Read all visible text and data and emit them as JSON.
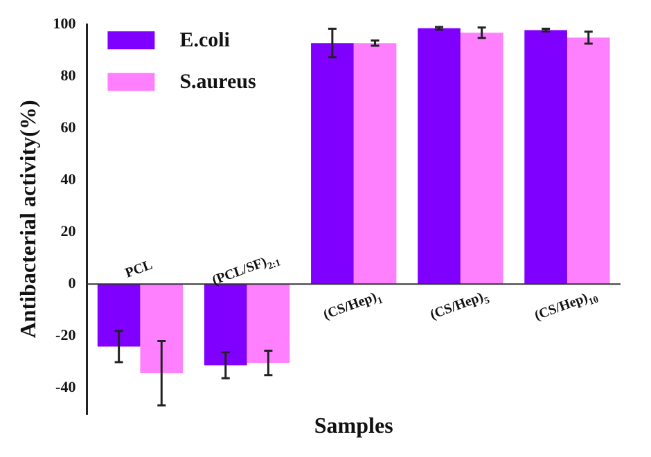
{
  "chart_data": {
    "type": "bar",
    "xlabel": "Samples",
    "ylabel": "Antibacterial activity(%)",
    "categories": [
      "PCL",
      "(PCL/SF)$_{2:1}$",
      "(CS/Hep)$_{1}$",
      "(CS/Hep)$_{5}$",
      "(CS/Hep)$_{10}$"
    ],
    "series": [
      {
        "name": "E.coli",
        "color": "#7f00ff",
        "values": [
          -24.1,
          -31.3,
          92.8,
          98.5,
          97.8
        ],
        "errors": [
          6,
          5,
          5.5,
          0.5,
          0.5
        ]
      },
      {
        "name": "S.aureus",
        "color": "#ff80ff",
        "values": [
          -34.4,
          -30.4,
          92.8,
          96.8,
          94.9
        ],
        "errors": [
          12.4,
          4.7,
          1,
          2,
          2.3
        ]
      }
    ],
    "ylim": [
      -50,
      100
    ],
    "yticks": [
      -40,
      -20,
      0,
      20,
      40,
      60,
      80,
      100
    ],
    "grid": false,
    "legend": "top left"
  }
}
